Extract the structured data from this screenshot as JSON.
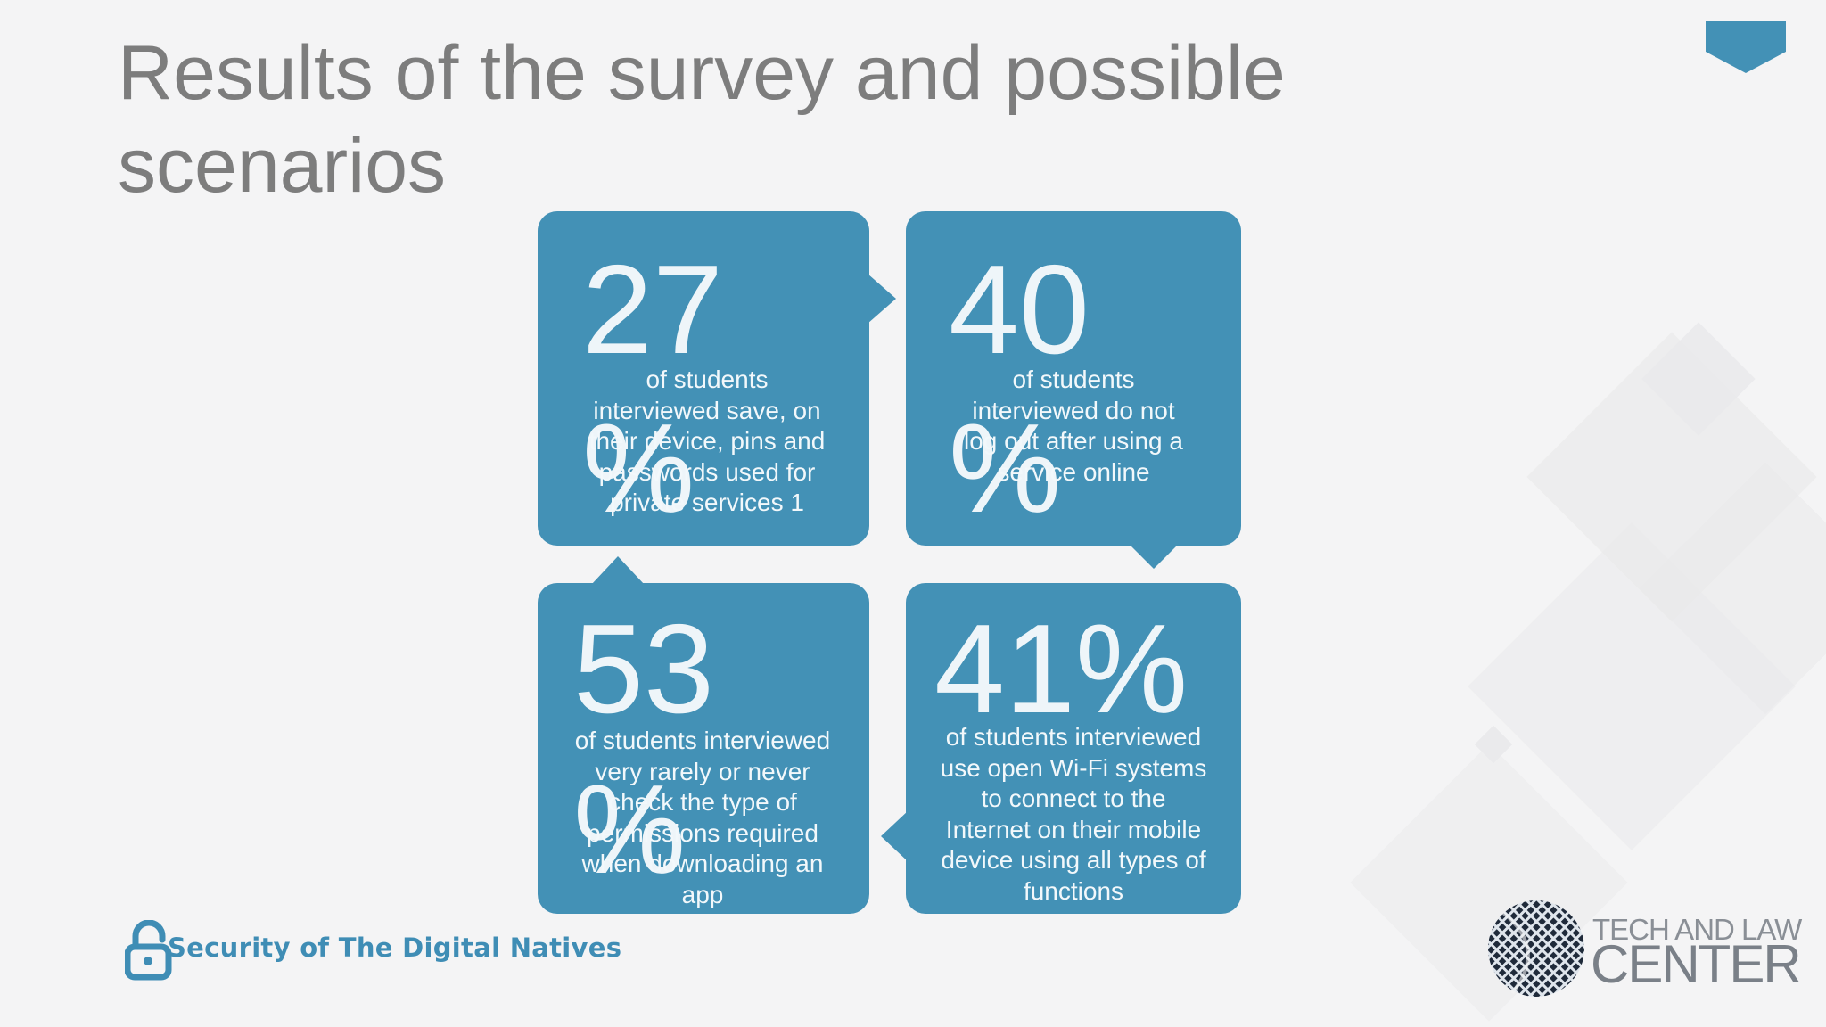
{
  "slide": {
    "title": "Results of the survey and possible scenarios",
    "accent_color": "#4391b6",
    "title_color": "#7d7d7d"
  },
  "cards": [
    {
      "number": "27",
      "percent": "%",
      "description": "of students interviewed save, on their device, pins and passwords used for private services 1"
    },
    {
      "number": "40",
      "percent": "%",
      "description": "of students interviewed do not log out after using a service online"
    },
    {
      "number": "53",
      "percent": "%",
      "description": "of students interviewed very rarely or never check the type of permissions required when downloading an app"
    },
    {
      "number": "41%",
      "description": "of students interviewed use open Wi-Fi systems to connect to the Internet on their mobile device using all types of functions"
    }
  ],
  "footer": {
    "brand": "Security of The Digital Natives",
    "brand_icon": "open-padlock-icon",
    "logo_line1": "TECH AND LAW",
    "logo_line2": "CENTER",
    "logo_icon": "globe-grid-icon"
  }
}
